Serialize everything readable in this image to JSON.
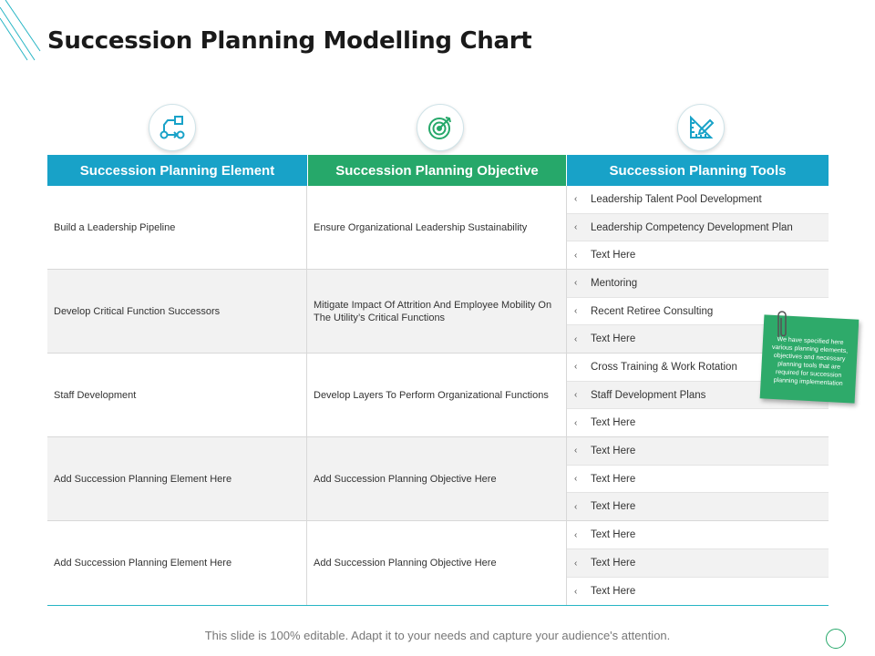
{
  "title": "Succession Planning Modelling Chart",
  "colors": {
    "blue": "#18a2c8",
    "green": "#26a86a"
  },
  "icons": [
    "flowchart-icon",
    "target-icon",
    "ruler-pencil-icon"
  ],
  "headers": [
    "Succession Planning Element",
    "Succession Planning Objective",
    "Succession Planning Tools"
  ],
  "rows": [
    {
      "element": "Build a Leadership Pipeline",
      "objective": "Ensure Organizational Leadership Sustainability",
      "tools": [
        "Leadership Talent Pool Development",
        "Leadership Competency Development Plan",
        "Text Here"
      ]
    },
    {
      "element": "Develop Critical Function Successors",
      "objective": "Mitigate Impact Of Attrition And Employee Mobility On The Utility’s Critical Functions",
      "tools": [
        "Mentoring",
        "Recent Retiree Consulting",
        "Text Here"
      ]
    },
    {
      "element": "Staff Development",
      "objective": "Develop Layers To Perform Organizational Functions",
      "tools": [
        "Cross Training & Work Rotation",
        "Staff Development Plans",
        "Text Here"
      ]
    },
    {
      "element": "Add Succession Planning Element Here",
      "objective": "Add Succession Planning Objective Here",
      "tools": [
        "Text Here",
        "Text Here",
        "Text Here"
      ]
    },
    {
      "element": "Add Succession Planning Element Here",
      "objective": "Add Succession Planning Objective Here",
      "tools": [
        "Text Here",
        "Text Here",
        "Text Here"
      ]
    }
  ],
  "chevron": "‹",
  "sticky_note": "We have specified here various planning elements, objectives and necessary planning tools that are required for succession planning implementation",
  "footer": "This slide is 100% editable. Adapt it to your needs and capture your audience's attention."
}
